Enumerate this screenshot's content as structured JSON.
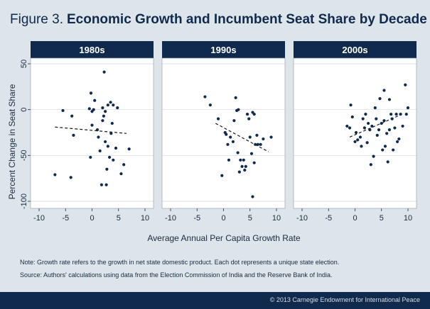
{
  "figure": {
    "label": "Figure 3.",
    "title": "Economic Growth and Incumbent Seat Share by Decade"
  },
  "notes": {
    "note": "Note: Growth rate refers to the growth in net state domestic product. Each dot represents a unique state election.",
    "source": "Source: Authors' calculations using data from the Election Commission of India and the Reserve Bank of India."
  },
  "footer": {
    "copyright": "© 2013 Carnegie Endowment for International Peace"
  },
  "colors": {
    "navy": "#0f2a4d",
    "panel_bg": "#ffffff",
    "page_bg": "#dde4ea",
    "dot": "#0f2a4d",
    "grid": "#cfd6de"
  },
  "chart_data": {
    "type": "scatter",
    "ylabel": "Percent Change in Seat Share",
    "xlabel": "Average Annual Per Capita Growth Rate",
    "xlim": [
      -10,
      10
    ],
    "ylim": [
      -100,
      50
    ],
    "xticks": [
      -10,
      -5,
      0,
      5,
      10
    ],
    "yticks": [
      50,
      0,
      -50,
      -100
    ],
    "grid": "horizontal",
    "panels": [
      {
        "title": "1980s",
        "trend": [
          [
            -7,
            -19
          ],
          [
            6.5,
            -26
          ]
        ],
        "points": [
          [
            -7,
            -71
          ],
          [
            -5.5,
            -1
          ],
          [
            -4,
            -74
          ],
          [
            -3.5,
            -28
          ],
          [
            -3.8,
            -7
          ],
          [
            -0.5,
            1
          ],
          [
            -0.3,
            -52
          ],
          [
            -0.2,
            18
          ],
          [
            0,
            -2
          ],
          [
            0,
            -17
          ],
          [
            0.3,
            0
          ],
          [
            0.5,
            10
          ],
          [
            1,
            -22
          ],
          [
            1.2,
            -30
          ],
          [
            1.5,
            -45
          ],
          [
            1.8,
            -82
          ],
          [
            2,
            -12
          ],
          [
            2,
            2
          ],
          [
            2.2,
            -7
          ],
          [
            2.5,
            -2
          ],
          [
            2.3,
            41
          ],
          [
            2.5,
            -35
          ],
          [
            2.7,
            -82
          ],
          [
            2.8,
            -65
          ],
          [
            3,
            -40
          ],
          [
            3,
            5
          ],
          [
            3.3,
            -52
          ],
          [
            3.5,
            8
          ],
          [
            3.6,
            -26
          ],
          [
            3.8,
            -15
          ],
          [
            4,
            5
          ],
          [
            4,
            -55
          ],
          [
            4.5,
            -42
          ],
          [
            4.8,
            2
          ],
          [
            5.5,
            -70
          ],
          [
            6,
            -60
          ],
          [
            7,
            -43
          ]
        ]
      },
      {
        "title": "1990s",
        "trend": [
          [
            -1.5,
            -15
          ],
          [
            8.5,
            -46
          ]
        ],
        "points": [
          [
            -3.5,
            14
          ],
          [
            -2.5,
            5
          ],
          [
            -1,
            -10
          ],
          [
            -0.3,
            -72
          ],
          [
            0.3,
            -25
          ],
          [
            0.5,
            -27
          ],
          [
            0.8,
            -38
          ],
          [
            1,
            -55
          ],
          [
            1.3,
            -30
          ],
          [
            1.8,
            -35
          ],
          [
            2,
            -12
          ],
          [
            2.3,
            13
          ],
          [
            2.5,
            -1
          ],
          [
            2.7,
            -47
          ],
          [
            2.8,
            0
          ],
          [
            3,
            -68
          ],
          [
            3.2,
            -55
          ],
          [
            3.5,
            -62
          ],
          [
            3.8,
            -55
          ],
          [
            4,
            -66
          ],
          [
            4.2,
            -62
          ],
          [
            4.5,
            -5
          ],
          [
            4.8,
            -10
          ],
          [
            5,
            -30
          ],
          [
            5.3,
            -48
          ],
          [
            5.5,
            -95
          ],
          [
            5.5,
            -3
          ],
          [
            5.8,
            -5
          ],
          [
            6,
            -38
          ],
          [
            6.3,
            -28
          ],
          [
            6.5,
            -38
          ],
          [
            7,
            -38
          ],
          [
            7.5,
            -32
          ],
          [
            9,
            -30
          ],
          [
            5.8,
            -58
          ]
        ]
      },
      {
        "title": "2000s",
        "trend": [
          [
            -1,
            -30
          ],
          [
            8.5,
            -6
          ]
        ],
        "points": [
          [
            -1.5,
            -18
          ],
          [
            -1,
            -20
          ],
          [
            -0.8,
            5
          ],
          [
            -0.5,
            -8
          ],
          [
            0,
            -35
          ],
          [
            0.2,
            -25
          ],
          [
            0.5,
            -33
          ],
          [
            1,
            -30
          ],
          [
            1.2,
            -40
          ],
          [
            1.5,
            -10
          ],
          [
            1.8,
            -20
          ],
          [
            2,
            -5
          ],
          [
            2.3,
            -36
          ],
          [
            2.5,
            -15
          ],
          [
            2.8,
            -22
          ],
          [
            3,
            -60
          ],
          [
            3.2,
            -18
          ],
          [
            3.5,
            -51
          ],
          [
            3.8,
            2
          ],
          [
            4,
            -10
          ],
          [
            4.2,
            -28
          ],
          [
            4.5,
            -22
          ],
          [
            4.7,
            12
          ],
          [
            5,
            -15
          ],
          [
            5.2,
            -44
          ],
          [
            5.5,
            -12
          ],
          [
            5.5,
            21
          ],
          [
            5.7,
            -40
          ],
          [
            6,
            -26
          ],
          [
            6.2,
            -57
          ],
          [
            6.5,
            -22
          ],
          [
            6.8,
            -5
          ],
          [
            7,
            -10
          ],
          [
            7.2,
            -44
          ],
          [
            7.5,
            -20
          ],
          [
            7.8,
            -5
          ],
          [
            8,
            -35
          ],
          [
            8.3,
            -32
          ],
          [
            8.6,
            -5
          ],
          [
            9,
            -18
          ],
          [
            9.5,
            27
          ],
          [
            10,
            2
          ],
          [
            9.7,
            -5
          ],
          [
            6.5,
            11
          ]
        ]
      }
    ]
  }
}
